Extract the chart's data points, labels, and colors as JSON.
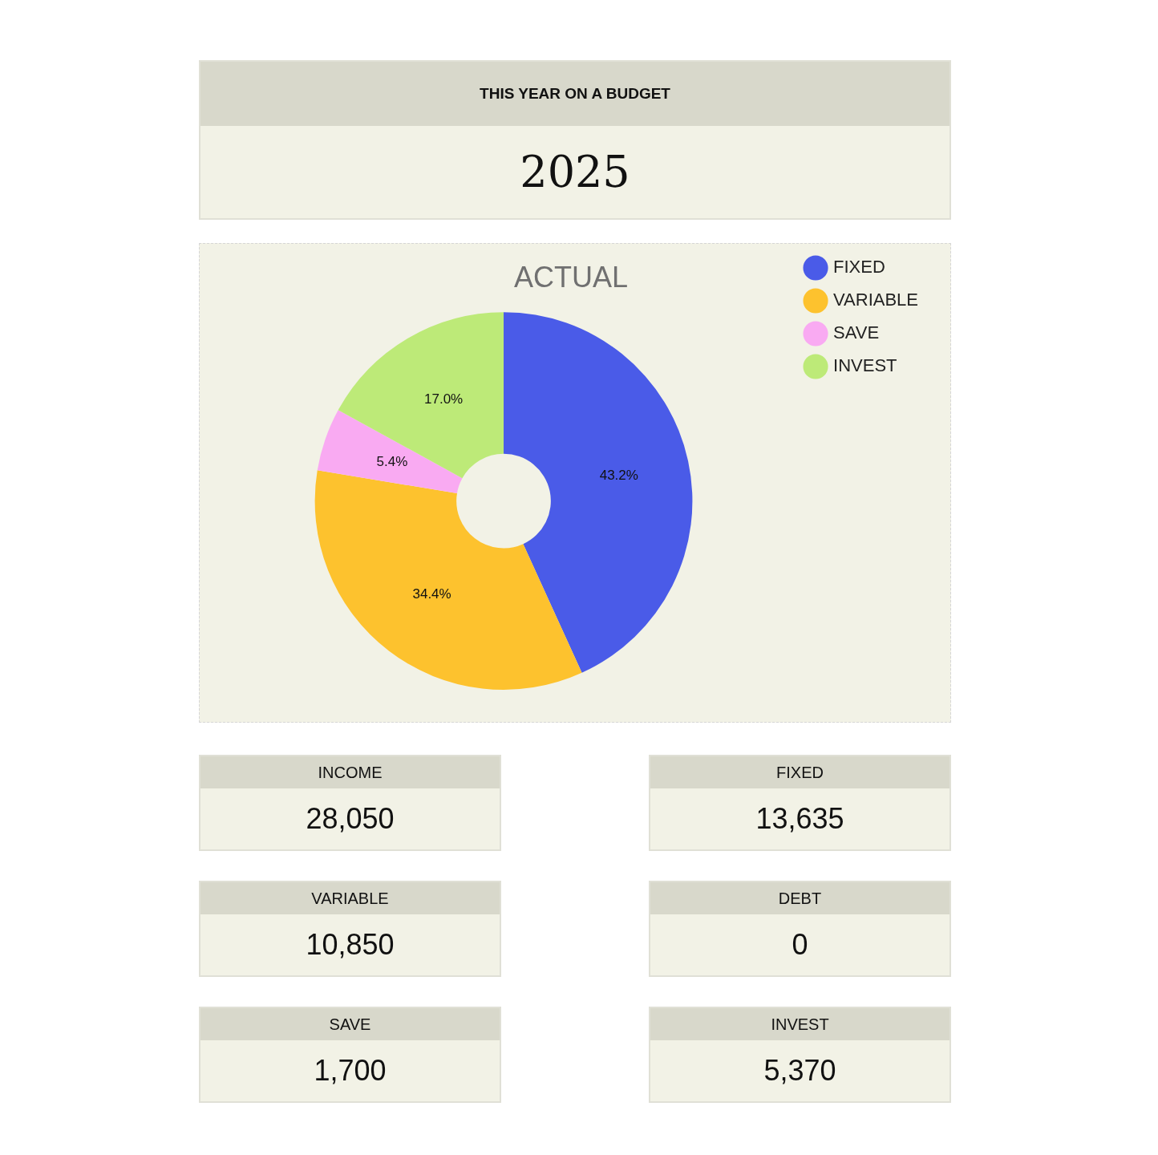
{
  "chart_data": [
    {
      "type": "other",
      "title": "THIS YEAR ON A BUDGET",
      "annotations": [
        "2025"
      ]
    },
    {
      "type": "donut",
      "title": "ACTUAL",
      "categories": [
        "FIXED",
        "VARIABLE",
        "SAVE",
        "INVEST"
      ],
      "values": [
        43.2,
        34.4,
        5.4,
        17.0
      ],
      "colors": [
        "#4a5be8",
        "#fdc22e",
        "#f9aaf2",
        "#bdea78"
      ],
      "value_labels": [
        "43.2%",
        "34.4%",
        "5.4%",
        "17.0%"
      ],
      "legend": "top right"
    },
    {
      "type": "other",
      "categories": [
        "INCOME",
        "FIXED",
        "VARIABLE",
        "DEBT",
        "SAVE",
        "INVEST"
      ],
      "value_labels": [
        "28,050",
        "13,635",
        "10,850",
        "0",
        "1,700",
        "5,370"
      ]
    }
  ]
}
